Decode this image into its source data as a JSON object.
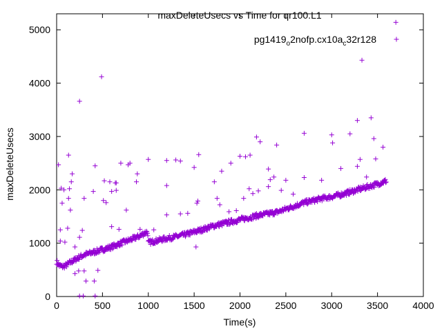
{
  "chart_data": {
    "type": "scatter",
    "title": "maxDeleteUsecs vs Time for qr100.L1",
    "xlabel": "Time(s)",
    "ylabel": "maxDeleteUsecs",
    "xlim": [
      0,
      4000
    ],
    "ylim": [
      0,
      5300
    ],
    "xticks": [
      0,
      500,
      1000,
      1500,
      2000,
      2500,
      3000,
      3500,
      4000
    ],
    "yticks": [
      0,
      1000,
      2000,
      3000,
      4000,
      5000
    ],
    "xtick_labels": [
      "0",
      "500",
      "1000",
      "1500",
      "2000",
      "2500",
      "3000",
      "3500",
      "4000"
    ],
    "ytick_labels": [
      "0",
      "1000",
      "2000",
      "3000",
      "4000",
      "5000"
    ],
    "grid": false,
    "legend_position": "top-right",
    "series": [
      {
        "name": "pg1419_o2nofp.cx10a_c32r128",
        "legend_parts": [
          {
            "text": "pg1419",
            "sub": false
          },
          {
            "text": "o",
            "sub": true
          },
          {
            "text": "2nofp.cx10a",
            "sub": false
          },
          {
            "text": "c",
            "sub": true
          },
          {
            "text": "32r128",
            "sub": false
          }
        ],
        "color": "#9400d3",
        "marker": "+",
        "trend": [
          [
            0,
            650
          ],
          [
            30,
            580
          ],
          [
            60,
            560
          ],
          [
            100,
            580
          ],
          [
            150,
            640
          ],
          [
            200,
            690
          ],
          [
            250,
            740
          ],
          [
            300,
            780
          ],
          [
            400,
            830
          ],
          [
            500,
            880
          ],
          [
            600,
            930
          ],
          [
            700,
            1000
          ],
          [
            800,
            1060
          ],
          [
            900,
            1130
          ],
          [
            990,
            1220
          ],
          [
            1000,
            1010
          ],
          [
            1100,
            1050
          ],
          [
            1200,
            1090
          ],
          [
            1300,
            1120
          ],
          [
            1400,
            1160
          ],
          [
            1500,
            1210
          ],
          [
            1600,
            1260
          ],
          [
            1700,
            1320
          ],
          [
            1800,
            1360
          ],
          [
            1900,
            1400
          ],
          [
            2000,
            1440
          ],
          [
            2100,
            1480
          ],
          [
            2200,
            1520
          ],
          [
            2300,
            1550
          ],
          [
            2400,
            1580
          ],
          [
            2500,
            1640
          ],
          [
            2600,
            1700
          ],
          [
            2700,
            1760
          ],
          [
            2800,
            1800
          ],
          [
            2900,
            1840
          ],
          [
            3000,
            1870
          ],
          [
            3100,
            1910
          ],
          [
            3200,
            1960
          ],
          [
            3300,
            2010
          ],
          [
            3400,
            2060
          ],
          [
            3500,
            2110
          ],
          [
            3600,
            2170
          ]
        ],
        "outliers": [
          [
            3700,
            5140
          ],
          [
            490,
            4120
          ],
          [
            250,
            3660
          ],
          [
            3330,
            4430
          ],
          [
            3280,
            3300
          ],
          [
            3430,
            3350
          ],
          [
            3460,
            2960
          ],
          [
            3560,
            2800
          ],
          [
            3200,
            3050
          ],
          [
            3000,
            3030
          ],
          [
            3010,
            2880
          ],
          [
            2700,
            3060
          ],
          [
            2180,
            2990
          ],
          [
            2400,
            2840
          ],
          [
            2220,
            2900
          ],
          [
            2110,
            2650
          ],
          [
            2060,
            2620
          ],
          [
            2000,
            2630
          ],
          [
            1550,
            2660
          ],
          [
            1500,
            2420
          ],
          [
            1300,
            2560
          ],
          [
            1350,
            2540
          ],
          [
            1200,
            2550
          ],
          [
            1000,
            2570
          ],
          [
            800,
            2500
          ],
          [
            700,
            2500
          ],
          [
            780,
            2470
          ],
          [
            1900,
            2500
          ],
          [
            1800,
            2350
          ],
          [
            880,
            2300
          ],
          [
            870,
            2150
          ],
          [
            580,
            2150
          ],
          [
            640,
            2130
          ],
          [
            520,
            2170
          ],
          [
            420,
            2450
          ],
          [
            130,
            2650
          ],
          [
            170,
            2300
          ],
          [
            20,
            2470
          ],
          [
            50,
            2030
          ],
          [
            80,
            2000
          ],
          [
            140,
            2020
          ],
          [
            160,
            2150
          ],
          [
            400,
            1970
          ],
          [
            600,
            1970
          ],
          [
            650,
            1990
          ],
          [
            650,
            2130
          ],
          [
            760,
            1620
          ],
          [
            2330,
            2190
          ],
          [
            2310,
            2390
          ],
          [
            2370,
            2240
          ],
          [
            2500,
            2180
          ],
          [
            2700,
            2230
          ],
          [
            2890,
            2180
          ],
          [
            3100,
            2400
          ],
          [
            3280,
            2440
          ],
          [
            3310,
            2570
          ],
          [
            3480,
            2580
          ],
          [
            3380,
            2240
          ],
          [
            1720,
            2150
          ],
          [
            1750,
            1840
          ],
          [
            1540,
            1790
          ],
          [
            1780,
            1720
          ],
          [
            1350,
            1550
          ],
          [
            1200,
            2080
          ],
          [
            1200,
            1530
          ],
          [
            510,
            1800
          ],
          [
            540,
            1760
          ],
          [
            300,
            1840
          ],
          [
            280,
            1240
          ],
          [
            130,
            1840
          ],
          [
            150,
            1620
          ],
          [
            120,
            1280
          ],
          [
            60,
            1750
          ],
          [
            40,
            1250
          ],
          [
            40,
            1040
          ],
          [
            90,
            1020
          ],
          [
            200,
            930
          ],
          [
            250,
            1110
          ],
          [
            200,
            430
          ],
          [
            240,
            480
          ],
          [
            300,
            480
          ],
          [
            320,
            290
          ],
          [
            410,
            290
          ],
          [
            450,
            490
          ],
          [
            290,
            10
          ],
          [
            250,
            10
          ],
          [
            420,
            10
          ],
          [
            600,
            1310
          ],
          [
            680,
            1260
          ],
          [
            910,
            1260
          ],
          [
            1520,
            930
          ],
          [
            1530,
            1750
          ],
          [
            1880,
            1590
          ],
          [
            1960,
            1610
          ],
          [
            2040,
            1840
          ],
          [
            2140,
            1930
          ],
          [
            2200,
            1980
          ],
          [
            2100,
            2020
          ],
          [
            2310,
            2060
          ],
          [
            2450,
            1990
          ],
          [
            2580,
            1920
          ],
          [
            1430,
            1560
          ],
          [
            1060,
            1250
          ]
        ]
      }
    ]
  }
}
